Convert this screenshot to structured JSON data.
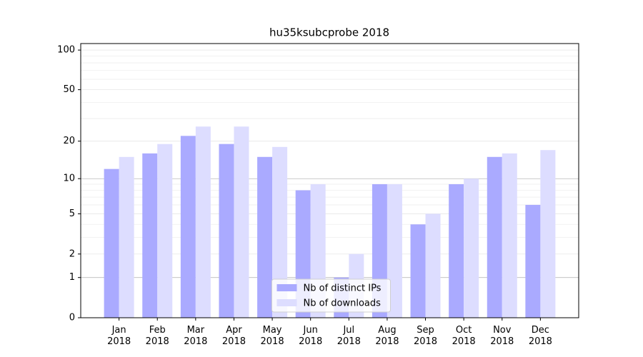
{
  "chart_data": {
    "type": "bar",
    "title": "hu35ksubcprobe 2018",
    "categories": [
      "Jan\n2018",
      "Feb\n2018",
      "Mar\n2018",
      "Apr\n2018",
      "May\n2018",
      "Jun\n2018",
      "Jul\n2018",
      "Aug\n2018",
      "Sep\n2018",
      "Oct\n2018",
      "Nov\n2018",
      "Dec\n2018"
    ],
    "series": [
      {
        "name": "Nb of distinct IPs",
        "color": "#aaaaff",
        "values": [
          12,
          16,
          22,
          19,
          15,
          8,
          1,
          9,
          4,
          9,
          15,
          6
        ]
      },
      {
        "name": "Nb of downloads",
        "color": "#ddddff",
        "values": [
          15,
          19,
          26,
          26,
          18,
          9,
          2,
          9,
          5,
          10,
          16,
          17
        ]
      }
    ],
    "yscale": "log1p",
    "ylim": [
      0,
      112
    ],
    "yticks": [
      0,
      1,
      2,
      5,
      10,
      20,
      50,
      100
    ],
    "yminorticks": [
      3,
      4,
      6,
      7,
      8,
      9,
      30,
      40,
      60,
      70,
      80,
      90
    ],
    "grid": true,
    "legend": "lower center"
  }
}
